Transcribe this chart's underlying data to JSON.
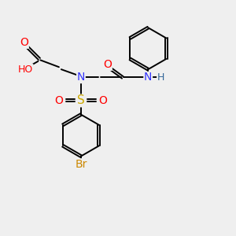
{
  "background_color": "#efefef",
  "atom_colors": {
    "C": "#000000",
    "N": "#3333ff",
    "O": "#ff0000",
    "S": "#ccaa00",
    "Br": "#cc8800",
    "H": "#336699"
  },
  "bond_color": "#000000",
  "bond_width": 1.4,
  "font_size": 9,
  "figsize": [
    3.0,
    3.0
  ],
  "dpi": 100,
  "xlim": [
    0,
    10
  ],
  "ylim": [
    0,
    10
  ]
}
